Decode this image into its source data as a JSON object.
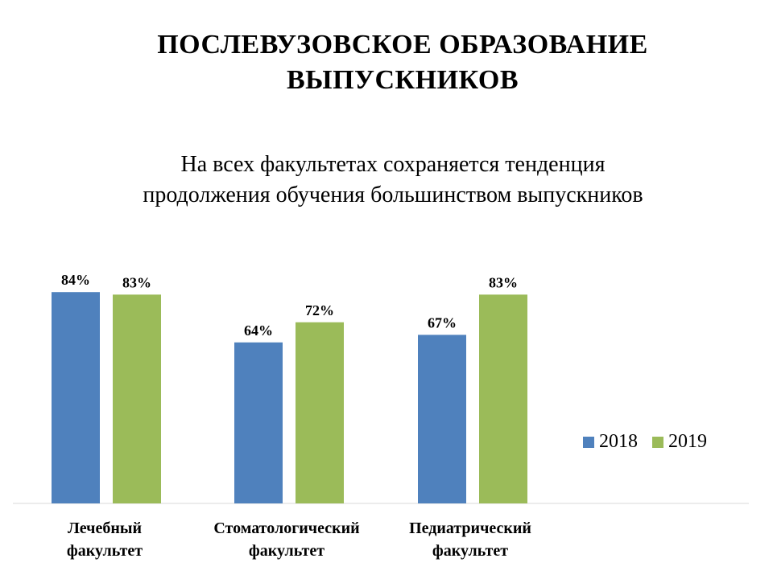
{
  "title": {
    "line1": "ПОСЛЕВУЗОВСКОЕ ОБРАЗОВАНИЕ",
    "line2": "ВЫПУСКНИКОВ"
  },
  "subtitle": {
    "line1": "На всех факультетах сохраняется тенденция",
    "line2": "продолжения обучения большинством выпускников"
  },
  "colors": {
    "2018": "#4f81bd",
    "2019": "#9bbb59"
  },
  "chart_data": {
    "type": "bar",
    "categories": [
      [
        "Лечебный",
        "факультет"
      ],
      [
        "Стоматологический",
        "факультет"
      ],
      [
        "Педиатрический",
        "факультет"
      ]
    ],
    "series": [
      {
        "name": "2018",
        "values": [
          84,
          64,
          67
        ],
        "labels": [
          "84%",
          "64%",
          "67%"
        ]
      },
      {
        "name": "2019",
        "values": [
          83,
          72,
          83
        ],
        "labels": [
          "83%",
          "72%",
          "83%"
        ]
      }
    ],
    "ylim": [
      0,
      100
    ],
    "grid": false,
    "legend": "right"
  }
}
